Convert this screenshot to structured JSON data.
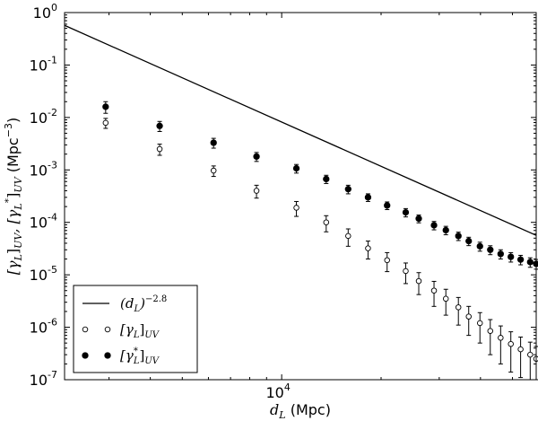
{
  "chart_data": {
    "type": "scatter",
    "xscale": "log",
    "yscale": "log",
    "xlim": [
      2200,
      59000
    ],
    "ylim": [
      1e-07,
      1
    ],
    "xlabel_var": "d",
    "xlabel_sub": "L",
    "xlabel_unit": " (Mpc)",
    "ylabel": "[γL]UV, [γL*]UV (Mpc⁻³)",
    "ylabel_parts": {
      "a": "[γ",
      "a_sub": "L",
      "b": "]",
      "b_sub": "UV",
      "sep": ", [γ",
      "c_sub": "L",
      "c_sup": "*",
      "d": "]",
      "d_sub": "UV",
      "unit": " (Mpc",
      "unit_sup": "−3",
      "unit_end": ")"
    },
    "y_ticks": [
      {
        "value": 1,
        "base": "10",
        "exp": "0"
      },
      {
        "value": 0.1,
        "base": "10",
        "exp": "-1"
      },
      {
        "value": 0.01,
        "base": "10",
        "exp": "-2"
      },
      {
        "value": 0.001,
        "base": "10",
        "exp": "-3"
      },
      {
        "value": 0.0001,
        "base": "10",
        "exp": "-4"
      },
      {
        "value": 1e-05,
        "base": "10",
        "exp": "-5"
      },
      {
        "value": 1e-06,
        "base": "10",
        "exp": "-6"
      },
      {
        "value": 1e-07,
        "base": "10",
        "exp": "-7"
      }
    ],
    "x_ticks": [
      {
        "value": 10000,
        "base": "10",
        "exp": "4"
      }
    ],
    "legend_position": "lower-left",
    "series": [
      {
        "name": "(dL)^-2.8",
        "label_parts": {
          "open": "(d",
          "sub": "L",
          "close": ")",
          "sup": "−2.8"
        },
        "kind": "line",
        "color": "#000000",
        "x": [
          2200,
          59000
        ],
        "y": [
          0.57,
          5.65e-05
        ]
      },
      {
        "name": "[γL]UV",
        "label_parts": {
          "open": "[γ",
          "sub": "L",
          "close": "]",
          "sub2": "UV"
        },
        "kind": "points-open",
        "color": "#000000",
        "x": [
          2930,
          4270,
          6220,
          8390,
          11080,
          13640,
          15900,
          18260,
          20860,
          23750,
          26010,
          28930,
          31420,
          34290,
          36850,
          39850,
          42830,
          46040,
          49430,
          52920,
          56580,
          59000
        ],
        "y": [
          0.0079,
          0.0025,
          0.00097,
          0.0004,
          0.00019,
          0.0001,
          5.5e-05,
          3.2e-05,
          1.9e-05,
          1.18e-05,
          7.6e-06,
          5e-06,
          3.5e-06,
          2.4e-06,
          1.6e-06,
          1.2e-06,
          8.5e-07,
          6.3e-07,
          4.8e-07,
          3.8e-07,
          3e-07,
          2.5e-07
        ],
        "yerr_low": [
          0.0017,
          0.0006,
          0.00022,
          0.00011,
          6e-05,
          3.4e-05,
          2e-05,
          1.2e-05,
          7.5e-06,
          5e-06,
          3.4e-06,
          2.5e-06,
          1.8e-06,
          1.3e-06,
          9e-07,
          7e-07,
          5.5e-07,
          4.3e-07,
          3.4e-07,
          2.7e-07,
          2.2e-07,
          1.8e-07
        ],
        "yerr_high": [
          0.0017,
          0.0006,
          0.00022,
          0.00011,
          6e-05,
          3.4e-05,
          2e-05,
          1.2e-05,
          7.5e-06,
          5e-06,
          3.4e-06,
          2.5e-06,
          1.8e-06,
          1.3e-06,
          9e-07,
          7e-07,
          5.5e-07,
          4.3e-07,
          3.4e-07,
          2.7e-07,
          2.2e-07,
          1.8e-07
        ]
      },
      {
        "name": "[γL*]UV",
        "label_parts": {
          "open": "[γ",
          "sub": "L",
          "sup": "*",
          "close": "]",
          "sub2": "UV"
        },
        "kind": "points-filled",
        "color": "#000000",
        "x": [
          2930,
          4270,
          6220,
          8390,
          11080,
          13640,
          15900,
          18260,
          20860,
          23750,
          26010,
          28930,
          31420,
          34290,
          36850,
          39850,
          42830,
          46040,
          49430,
          52920,
          56580,
          59000
        ],
        "y": [
          0.016,
          0.0069,
          0.0033,
          0.0018,
          0.00107,
          0.00067,
          0.00043,
          0.0003,
          0.00021,
          0.000155,
          0.000118,
          8.8e-05,
          7.1e-05,
          5.5e-05,
          4.4e-05,
          3.5e-05,
          3e-05,
          2.5e-05,
          2.2e-05,
          1.95e-05,
          1.75e-05,
          1.62e-05
        ],
        "yerr_low": [
          0.004,
          0.0015,
          0.0007,
          0.00035,
          0.0002,
          0.00012,
          8e-05,
          5e-05,
          3.5e-05,
          2.8e-05,
          2e-05,
          1.6e-05,
          1.3e-05,
          1e-05,
          8e-06,
          6.8e-06,
          5.8e-06,
          5e-06,
          4.5e-06,
          4e-06,
          3.6e-06,
          3.4e-06
        ],
        "yerr_high": [
          0.004,
          0.0015,
          0.0007,
          0.00035,
          0.0002,
          0.00012,
          8e-05,
          5e-05,
          3.5e-05,
          2.8e-05,
          2e-05,
          1.6e-05,
          1.3e-05,
          1e-05,
          8e-06,
          6.8e-06,
          5.8e-06,
          5e-06,
          4.5e-06,
          4e-06,
          3.6e-06,
          3.4e-06
        ]
      }
    ]
  }
}
